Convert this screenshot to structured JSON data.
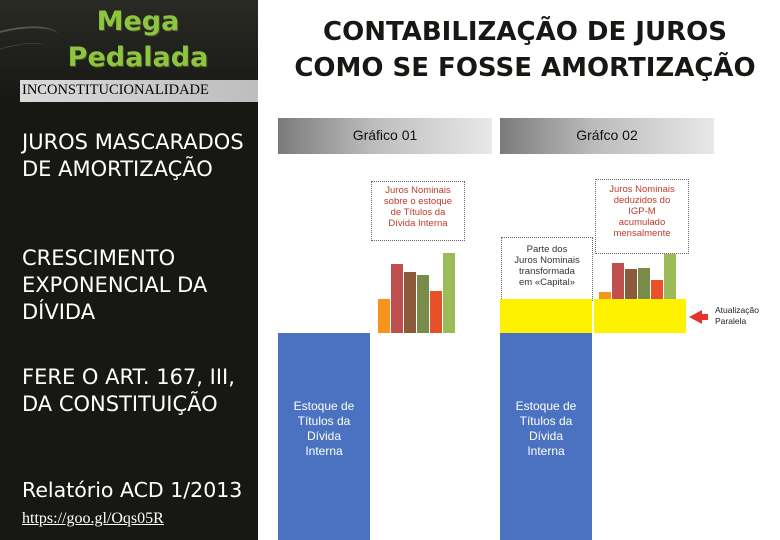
{
  "left_panel": {
    "logo_line1": "Mega",
    "logo_line2": "Pedalada",
    "banner": "INCONSTITUCIONALIDADE",
    "points": [
      "JUROS MASCARADOS DE AMORTIZAÇÃO",
      "CRESCIMENTO EXPONENCIAL DA DÍVIDA",
      "FERE O ART. 167, III, DA CONSTITUIÇÃO"
    ],
    "report": "Relatório ACD 1/2013",
    "link": "https://goo.gl/Oqs05R"
  },
  "main": {
    "title_line1": "CONTABILIZAÇÃO DE JUROS",
    "title_line2": "COMO SE FOSSE AMORTIZAÇÃO",
    "graph1_header": "Gráfico 01",
    "graph2_header": "Gráfco 02",
    "stock_label_1": "Estoque de\nTítulos da\nDívida\nInterna",
    "stock_label_2": "Estoque de\nTítulos da\nDívida\nInterna",
    "box1_text": "Juros Nominais\nsobre o estoque\nde Títulos da\nDívida Interna",
    "box2_text": "Parte dos\nJuros Nominais\ntransformada\nem «Capital»",
    "box3_text": "Juros Nominais\ndeduzidos do\nIGP-M\nacumulado\nmensalmente",
    "arrow_label": "Atualização\nParalela"
  },
  "colors": {
    "stock_blue": "#4a72c0",
    "yellow": "#fff200",
    "logo_green": "#8cc63f",
    "bar_palette": [
      "#f7941d",
      "#c0504d",
      "#8b5a3c",
      "#7a8c4a",
      "#e8502a",
      "#9bbb59"
    ]
  },
  "bars_graph1": [
    {
      "color": "#f7941d",
      "value": 0.42
    },
    {
      "color": "#c0504d",
      "value": 0.86
    },
    {
      "color": "#8b5a3c",
      "value": 0.76
    },
    {
      "color": "#7a8c4a",
      "value": 0.72
    },
    {
      "color": "#e8502a",
      "value": 0.52
    },
    {
      "color": "#9bbb59",
      "value": 1.0
    }
  ],
  "bars_graph2": [
    {
      "color": "#f7941d",
      "value": 0.14
    },
    {
      "color": "#c0504d",
      "value": 0.72
    },
    {
      "color": "#8b5a3c",
      "value": 0.6
    },
    {
      "color": "#7a8c4a",
      "value": 0.62
    },
    {
      "color": "#e8502a",
      "value": 0.38
    },
    {
      "color": "#9bbb59",
      "value": 0.9
    }
  ]
}
